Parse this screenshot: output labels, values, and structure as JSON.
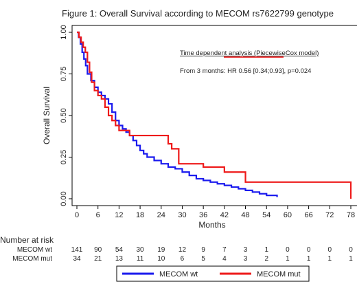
{
  "chart_data": {
    "type": "line",
    "title": "Figure 1: Overall Survival according to MECOM rs7622799 genotype",
    "xlabel": "Months",
    "ylabel": "Overall Survival",
    "xlim": [
      0,
      78
    ],
    "ylim": [
      0,
      1
    ],
    "x_ticks": [
      0,
      6,
      12,
      18,
      24,
      30,
      36,
      42,
      48,
      54,
      60,
      66,
      72,
      78
    ],
    "y_ticks": [
      "0.00",
      "0.25",
      "0.50",
      "0.75",
      "1.00"
    ],
    "annotations": [
      "Time dependent analysis (PiecewiseCox model)",
      "From 3 months: HR 0.56 [0.34;0.93], p=0.024"
    ],
    "series": [
      {
        "name": "MECOM wt",
        "color": "#1a1aee",
        "points": [
          [
            0,
            1.0
          ],
          [
            0.5,
            0.97
          ],
          [
            1,
            0.93
          ],
          [
            1.5,
            0.88
          ],
          [
            2,
            0.84
          ],
          [
            2.5,
            0.8
          ],
          [
            3,
            0.75
          ],
          [
            4,
            0.71
          ],
          [
            5,
            0.67
          ],
          [
            6,
            0.64
          ],
          [
            7,
            0.62
          ],
          [
            8,
            0.6
          ],
          [
            9,
            0.57
          ],
          [
            10,
            0.52
          ],
          [
            11,
            0.47
          ],
          [
            12,
            0.44
          ],
          [
            13,
            0.42
          ],
          [
            14,
            0.4
          ],
          [
            15,
            0.38
          ],
          [
            16,
            0.35
          ],
          [
            17,
            0.32
          ],
          [
            18,
            0.29
          ],
          [
            19,
            0.27
          ],
          [
            20,
            0.25
          ],
          [
            22,
            0.23
          ],
          [
            24,
            0.21
          ],
          [
            26,
            0.19
          ],
          [
            28,
            0.18
          ],
          [
            30,
            0.16
          ],
          [
            32,
            0.14
          ],
          [
            34,
            0.12
          ],
          [
            36,
            0.11
          ],
          [
            38,
            0.1
          ],
          [
            40,
            0.09
          ],
          [
            42,
            0.08
          ],
          [
            44,
            0.07
          ],
          [
            46,
            0.06
          ],
          [
            48,
            0.05
          ],
          [
            50,
            0.04
          ],
          [
            52,
            0.03
          ],
          [
            54,
            0.02
          ],
          [
            57,
            0.01
          ]
        ]
      },
      {
        "name": "MECOM mut",
        "color": "#ee1a1a",
        "points": [
          [
            0,
            1.0
          ],
          [
            0.6,
            0.97
          ],
          [
            1.2,
            0.94
          ],
          [
            1.8,
            0.91
          ],
          [
            2.4,
            0.88
          ],
          [
            3,
            0.82
          ],
          [
            3.6,
            0.76
          ],
          [
            4.2,
            0.7
          ],
          [
            5,
            0.65
          ],
          [
            6,
            0.62
          ],
          [
            7,
            0.6
          ],
          [
            8,
            0.55
          ],
          [
            9,
            0.5
          ],
          [
            10,
            0.47
          ],
          [
            11,
            0.44
          ],
          [
            12,
            0.41
          ],
          [
            15,
            0.38
          ],
          [
            18,
            0.38
          ],
          [
            26,
            0.33
          ],
          [
            27,
            0.3
          ],
          [
            28,
            0.3
          ],
          [
            29,
            0.21
          ],
          [
            36,
            0.19
          ],
          [
            42,
            0.16
          ],
          [
            48,
            0.1
          ],
          [
            78,
            0.1
          ],
          [
            78,
            0.0
          ]
        ]
      }
    ],
    "risk_table": {
      "title": "Number at risk",
      "times": [
        0,
        6,
        12,
        18,
        24,
        30,
        36,
        42,
        48,
        54,
        60,
        66,
        72,
        78
      ],
      "rows": [
        {
          "name": "MECOM wt",
          "values": [
            141,
            90,
            54,
            30,
            19,
            12,
            9,
            7,
            3,
            1,
            0,
            0,
            0,
            0
          ]
        },
        {
          "name": "MECOM mut",
          "values": [
            34,
            21,
            13,
            11,
            10,
            6,
            5,
            4,
            3,
            2,
            1,
            1,
            1,
            1
          ]
        }
      ]
    },
    "legend_position": "bottom"
  }
}
